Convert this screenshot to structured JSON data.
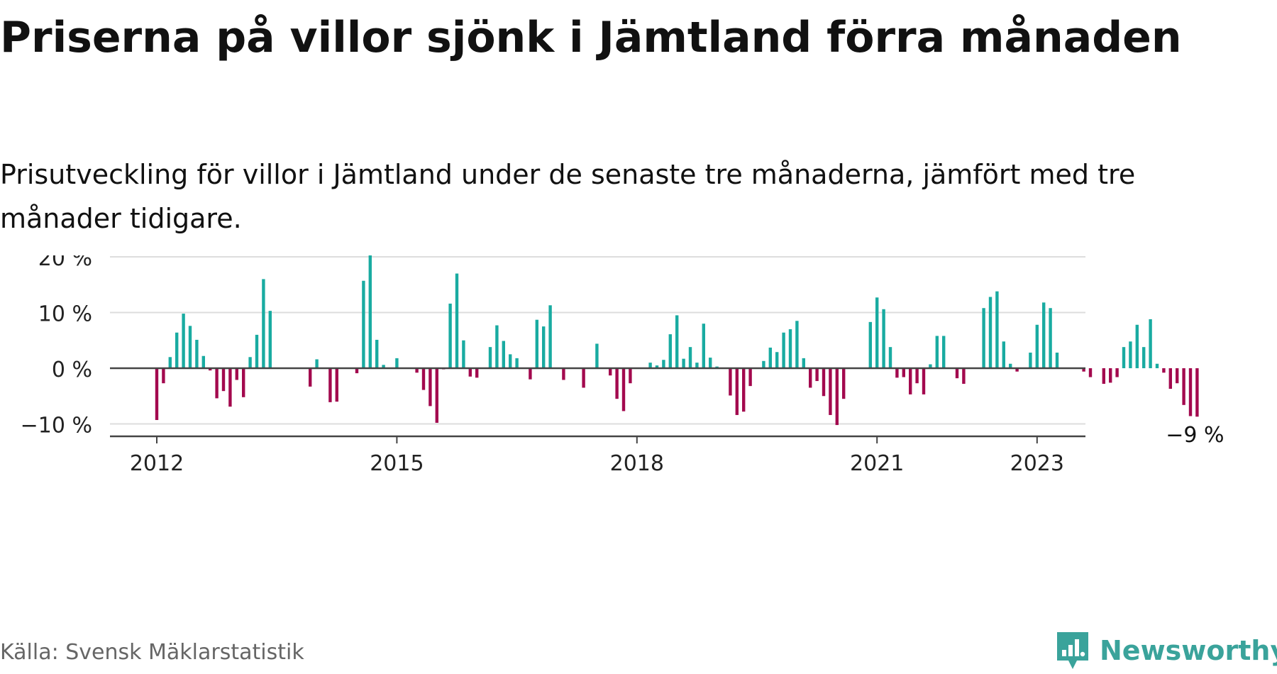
{
  "title": "Priserna på villor sjönk i Jämtland förra månaden",
  "subtitle": "Prisutveckling för villor i Jämtland under de senaste tre månaderna, jämfört med tre månader tidigare.",
  "source": "Källa: Svensk Mäklarstatistik",
  "brand": {
    "name": "Newsworthy",
    "icon": "newsworthy-logo-icon",
    "color": "#3aa39b"
  },
  "colors": {
    "positive": "#19aba1",
    "negative": "#a3094e",
    "grid": "#dddddd",
    "axis": "#444444"
  },
  "chart_data": {
    "type": "bar",
    "title": "",
    "xlabel": "",
    "ylabel": "",
    "ylim": [
      -12,
      20
    ],
    "yticks": [
      -10,
      0,
      10,
      20
    ],
    "ytick_labels": [
      "−10 %",
      "0 %",
      "10 %",
      "20 %"
    ],
    "xticks": [
      {
        "label": "2012",
        "year": 2012,
        "month": 1
      },
      {
        "label": "2015",
        "year": 2015,
        "month": 1
      },
      {
        "label": "2018",
        "year": 2018,
        "month": 1
      },
      {
        "label": "2021",
        "year": 2021,
        "month": 1
      },
      {
        "label": "2023",
        "year": 2023,
        "month": 1
      }
    ],
    "start": {
      "year": 2012,
      "month": 1
    },
    "values": [
      -9.3,
      -2.7,
      2.0,
      6.4,
      9.8,
      7.6,
      5.1,
      2.2,
      -0.4,
      -5.4,
      -4.1,
      -6.9,
      -2.1,
      -5.2,
      2.0,
      6.0,
      16.0,
      10.3,
      null,
      null,
      null,
      null,
      null,
      -3.3,
      1.6,
      null,
      -6.1,
      -6.0,
      null,
      null,
      -0.9,
      15.7,
      20.3,
      5.1,
      0.6,
      null,
      1.8,
      null,
      null,
      -0.8,
      -3.9,
      -6.8,
      -9.8,
      -0.2,
      11.6,
      17.0,
      5.0,
      -1.5,
      -1.7,
      null,
      3.8,
      7.7,
      4.9,
      2.5,
      1.8,
      null,
      -2.0,
      8.7,
      7.5,
      11.3,
      null,
      -2.1,
      null,
      null,
      -3.5,
      null,
      4.4,
      null,
      -1.3,
      -5.5,
      -7.7,
      -2.7,
      null,
      null,
      1.0,
      0.5,
      1.5,
      6.1,
      9.5,
      1.7,
      3.8,
      1.0,
      8.0,
      1.9,
      0.3,
      null,
      -4.9,
      -8.4,
      -7.8,
      -3.2,
      null,
      1.3,
      3.7,
      2.9,
      6.4,
      7.0,
      8.5,
      1.8,
      -3.5,
      -2.3,
      -5.0,
      -8.4,
      -10.2,
      -5.5,
      null,
      null,
      null,
      8.3,
      12.7,
      10.6,
      3.8,
      -1.7,
      -1.6,
      -4.7,
      -2.7,
      -4.7,
      0.7,
      5.8,
      5.8,
      null,
      -1.8,
      -2.8,
      null,
      null,
      10.8,
      12.8,
      13.8,
      4.8,
      0.8,
      -0.6,
      null,
      2.8,
      7.8,
      11.8,
      10.8,
      2.8,
      null,
      null,
      null,
      -0.6,
      -1.6,
      null,
      -2.8,
      -2.6,
      -1.6,
      3.8,
      4.8,
      7.8,
      3.8,
      8.8,
      0.8,
      -0.8,
      -3.7,
      -2.7,
      -6.6,
      -8.6,
      -8.7
    ],
    "end_label": "−9 %",
    "grid": true,
    "legend": "none"
  }
}
